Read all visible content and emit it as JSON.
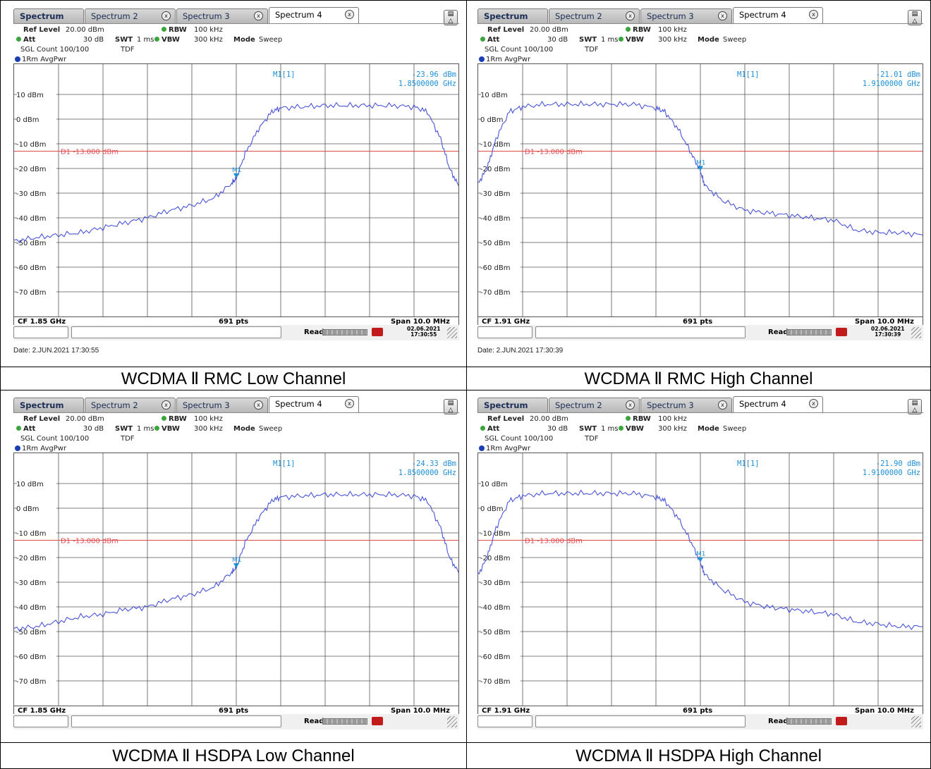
{
  "tabs": [
    {
      "label": "Spectrum",
      "closable": false
    },
    {
      "label": "Spectrum 2",
      "closable": true
    },
    {
      "label": "Spectrum 3",
      "closable": true
    },
    {
      "label": "Spectrum 4",
      "closable": true,
      "active": true
    }
  ],
  "close_glyph": "x",
  "settings": {
    "ref_level_label": "Ref Level",
    "ref_level_value": "20.00 dBm",
    "att_label": "Att",
    "att_value": "30 dB",
    "swt_label": "SWT",
    "swt_value": "1 ms",
    "rbw_label": "RBW",
    "rbw_value": "100 kHz",
    "vbw_label": "VBW",
    "vbw_value": "300 kHz",
    "mode_label": "Mode",
    "mode_value": "Sweep",
    "sgl_count": "SGL Count 100/100",
    "tdf": "TDF"
  },
  "trace_label": "1Rm AvgPwr",
  "y_tick_labels": [
    "10 dBm",
    "0 dBm",
    "-10 dBm",
    "-20 dBm",
    "-30 dBm",
    "-40 dBm",
    "-50 dBm",
    "-60 dBm",
    "-70 dBm"
  ],
  "limit_line": {
    "label": "D1 -13.000 dBm",
    "value_dbm": -13
  },
  "footer": {
    "points": "691 pts",
    "span": "Span 10.0 MHz"
  },
  "status": {
    "ready": "Ready"
  },
  "colors": {
    "trace": "#4a55d6",
    "limit": "#e04a4a",
    "marker": "#1f8fd6",
    "grid": "#555555"
  },
  "panels": [
    {
      "cf": "CF 1.85 GHz",
      "marker_name": "M1[1]",
      "marker_value": "-23.96 dBm",
      "marker_freq": "1.8500000 GHz",
      "marker_tag": "M1",
      "datetime_date": "02.06.2021",
      "datetime_time": "17:30:55",
      "date_line": "Date: 2.JUN.2021  17:30:55",
      "caption": "WCDMA Ⅱ RMC Low Channel",
      "chart_data": {
        "type": "line",
        "xlabel": "",
        "ylabel": "",
        "x_unit": "MHz offset from CF",
        "xlim": [
          -5,
          5
        ],
        "ylim": [
          -80,
          20
        ],
        "x": [
          -5,
          -4.5,
          -4,
          -3.5,
          -3,
          -2.5,
          -2,
          -1.5,
          -1,
          -0.5,
          -0.1,
          0,
          0.2,
          0.5,
          0.8,
          1,
          1.5,
          2,
          2.5,
          3,
          3.5,
          4,
          4.3,
          4.6,
          4.8,
          5
        ],
        "y": [
          -49.5,
          -48,
          -47,
          -46,
          -44,
          -42,
          -40,
          -37,
          -35,
          -32,
          -26,
          -24,
          -14,
          -4,
          3,
          4.5,
          5,
          5.5,
          5.5,
          5.5,
          5.5,
          5,
          3,
          -8,
          -20,
          -27
        ]
      }
    },
    {
      "cf": "CF 1.91 GHz",
      "marker_name": "M1[1]",
      "marker_value": "-21.01 dBm",
      "marker_freq": "1.9100000 GHz",
      "marker_tag": "M1",
      "datetime_date": "02.06.2021",
      "datetime_time": "17:30:39",
      "date_line": "Date: 2.JUN.2021  17:30:39",
      "caption": "WCDMA Ⅱ RMC High Channel",
      "chart_data": {
        "type": "line",
        "xlabel": "",
        "ylabel": "",
        "x_unit": "MHz offset from CF",
        "xlim": [
          -5,
          5
        ],
        "ylim": [
          -80,
          20
        ],
        "x": [
          -5,
          -4.8,
          -4.6,
          -4.3,
          -4,
          -3.5,
          -3,
          -2.5,
          -2,
          -1.5,
          -1,
          -0.8,
          -0.5,
          -0.2,
          0,
          0.1,
          0.5,
          1,
          1.5,
          2,
          2.5,
          3,
          3.5,
          4,
          4.5,
          5
        ],
        "y": [
          -26,
          -20,
          -8,
          3,
          5,
          6,
          6,
          6,
          6,
          6,
          4.5,
          3,
          -4,
          -14,
          -21,
          -27,
          -33,
          -37,
          -38,
          -39,
          -40,
          -41,
          -45,
          -46,
          -46,
          -47
        ]
      }
    },
    {
      "cf": "CF 1.85 GHz",
      "marker_name": "M1[1]",
      "marker_value": "-24.33 dBm",
      "marker_freq": "1.8500000 GHz",
      "marker_tag": "M1",
      "datetime_date": "",
      "datetime_time": "",
      "date_line": "",
      "caption": "WCDMA Ⅱ HSDPA Low Channel",
      "chart_data": {
        "type": "line",
        "xlabel": "",
        "ylabel": "",
        "x_unit": "MHz offset from CF",
        "xlim": [
          -5,
          5
        ],
        "ylim": [
          -80,
          20
        ],
        "x": [
          -5,
          -4.5,
          -4,
          -3.5,
          -3,
          -2.5,
          -2,
          -1.5,
          -1,
          -0.5,
          -0.1,
          0,
          0.2,
          0.5,
          0.8,
          1,
          1.5,
          2,
          2.5,
          3,
          3.5,
          4,
          4.3,
          4.6,
          4.8,
          5
        ],
        "y": [
          -49,
          -48,
          -46,
          -44,
          -43,
          -41,
          -40,
          -37,
          -35,
          -32,
          -26,
          -24,
          -14,
          -4,
          3,
          4.5,
          5,
          5.5,
          5.5,
          5.5,
          5.5,
          5,
          3,
          -8,
          -20,
          -26
        ]
      }
    },
    {
      "cf": "CF 1.91 GHz",
      "marker_name": "M1[1]",
      "marker_value": "-21.90 dBm",
      "marker_freq": "1.9100000 GHz",
      "marker_tag": "M1",
      "datetime_date": "",
      "datetime_time": "",
      "date_line": "",
      "caption": "WCDMA Ⅱ HSDPA High Channel",
      "chart_data": {
        "type": "line",
        "xlabel": "",
        "ylabel": "",
        "x_unit": "MHz offset from CF",
        "xlim": [
          -5,
          5
        ],
        "ylim": [
          -80,
          20
        ],
        "x": [
          -5,
          -4.8,
          -4.6,
          -4.3,
          -4,
          -3.5,
          -3,
          -2.5,
          -2,
          -1.5,
          -1,
          -0.8,
          -0.5,
          -0.2,
          0,
          0.1,
          0.5,
          1,
          1.5,
          2,
          2.5,
          3,
          3.5,
          4,
          4.5,
          5
        ],
        "y": [
          -27,
          -20,
          -8,
          3,
          5,
          6,
          6,
          6,
          6,
          6,
          4.5,
          3,
          -4,
          -14,
          -22,
          -27,
          -33,
          -38,
          -40,
          -41,
          -42,
          -43,
          -46,
          -47,
          -48,
          -48
        ]
      }
    }
  ]
}
